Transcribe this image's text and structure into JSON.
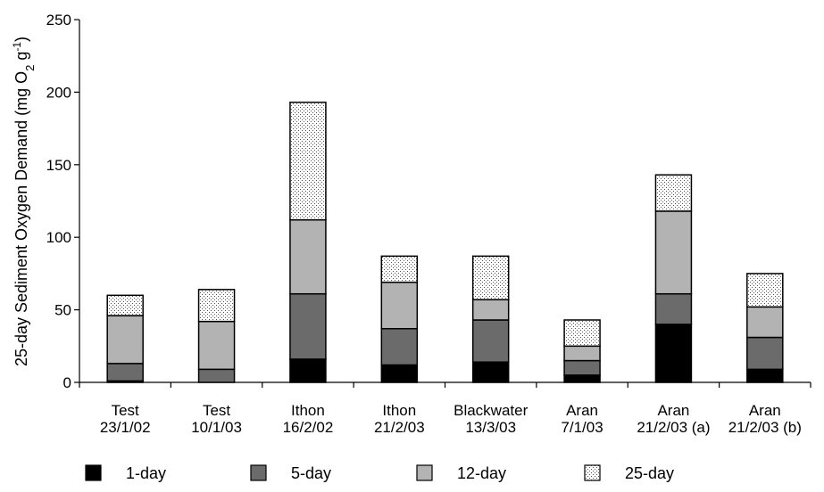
{
  "chart_data": {
    "type": "bar",
    "stacked": true,
    "title": "",
    "xlabel": "",
    "ylabel": "25-day Sediment Oxygen Demand (mg O2 g-1)",
    "ylabel_parts": {
      "pre": "25-day Sediment Oxygen Demand (mg O",
      "sub": "2",
      "mid": " g",
      "sup": "-1",
      "post": ")"
    },
    "ylim": [
      0,
      250
    ],
    "yticks": [
      0,
      50,
      100,
      150,
      200,
      250
    ],
    "grid": false,
    "legend_position": "bottom",
    "categories": [
      [
        "Test",
        "23/1/02"
      ],
      [
        "Test",
        "10/1/03"
      ],
      [
        "Ithon",
        "16/2/02"
      ],
      [
        "Ithon",
        "21/2/03"
      ],
      [
        "Blackwater",
        "13/3/03"
      ],
      [
        "Aran",
        "7/1/03"
      ],
      [
        "Aran",
        "21/2/03 (a)"
      ],
      [
        "Aran",
        "21/2/03 (b)"
      ]
    ],
    "series": [
      {
        "name": "1-day",
        "fill": "#000000",
        "pattern": "solid",
        "values": [
          1,
          0,
          16,
          12,
          14,
          5,
          40,
          9
        ]
      },
      {
        "name": "5-day",
        "fill": "#6b6b6b",
        "pattern": "solid",
        "values": [
          12,
          9,
          45,
          25,
          29,
          10,
          21,
          22
        ]
      },
      {
        "name": "12-day",
        "fill": "#b3b3b3",
        "pattern": "solid",
        "values": [
          33,
          33,
          51,
          32,
          14,
          10,
          57,
          21
        ]
      },
      {
        "name": "25-day",
        "fill": "#ffffff",
        "pattern": "dotted",
        "values": [
          14,
          22,
          81,
          18,
          30,
          18,
          25,
          23
        ]
      }
    ]
  }
}
